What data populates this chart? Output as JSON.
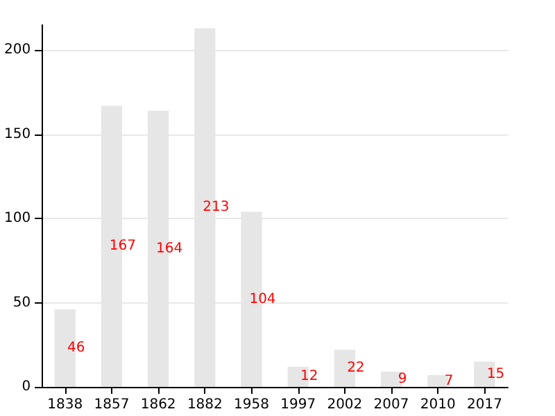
{
  "chart_data": {
    "type": "bar",
    "categories": [
      "1838",
      "1857",
      "1862",
      "1882",
      "1958",
      "1997",
      "2002",
      "2007",
      "2010",
      "2017"
    ],
    "values": [
      46,
      167,
      164,
      213,
      104,
      12,
      22,
      9,
      7,
      15
    ],
    "color": "#e6e6e6",
    "ylim": [
      0,
      215
    ],
    "yticks": [
      0,
      50,
      100,
      150,
      200
    ],
    "grid": "y",
    "data_labels": true
  }
}
